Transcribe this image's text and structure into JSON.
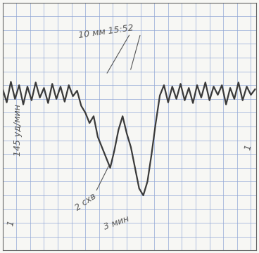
{
  "chart_data": {
    "type": "line",
    "x": [
      0,
      6,
      12,
      18,
      24,
      30,
      36,
      42,
      48,
      54,
      60,
      66,
      72,
      78,
      84,
      90,
      96,
      102,
      108,
      114,
      120,
      126,
      132,
      138,
      144,
      150,
      156,
      162,
      168,
      174,
      180,
      186,
      192,
      198,
      204,
      210,
      216,
      222,
      228,
      234,
      240,
      246,
      252,
      258,
      264,
      270,
      276,
      282,
      288,
      294,
      300,
      306,
      312,
      318,
      324,
      330,
      336,
      342,
      348,
      354,
      360,
      366
    ],
    "values": [
      235,
      215,
      245,
      220,
      240,
      212,
      238,
      218,
      244,
      222,
      236,
      214,
      242,
      220,
      238,
      216,
      240,
      224,
      232,
      210,
      200,
      185,
      195,
      165,
      150,
      135,
      120,
      145,
      175,
      195,
      170,
      150,
      120,
      90,
      80,
      100,
      140,
      185,
      225,
      240,
      215,
      238,
      220,
      242,
      218,
      236,
      214,
      240,
      222,
      244,
      218,
      238,
      226,
      240,
      212,
      236,
      220,
      244,
      218,
      238,
      226,
      234
    ],
    "color": "#3a3a3a",
    "xlim": [
      0,
      368
    ],
    "ylim": [
      0,
      360
    ],
    "xticks": [
      0,
      20,
      40,
      60,
      80,
      100,
      120,
      140,
      160,
      180,
      200,
      220,
      240,
      260,
      280,
      300,
      320,
      340,
      360
    ],
    "yticks": [
      0,
      20,
      40,
      60,
      80,
      100,
      120,
      140,
      160,
      180,
      200,
      220,
      240,
      260,
      280,
      300,
      320,
      340,
      360
    ],
    "grid": true,
    "tick_labels": false,
    "annotations": [
      "10 мм 15:52",
      "145 уд/мин",
      "2 схв",
      "3 мин",
      "1",
      "1"
    ]
  }
}
